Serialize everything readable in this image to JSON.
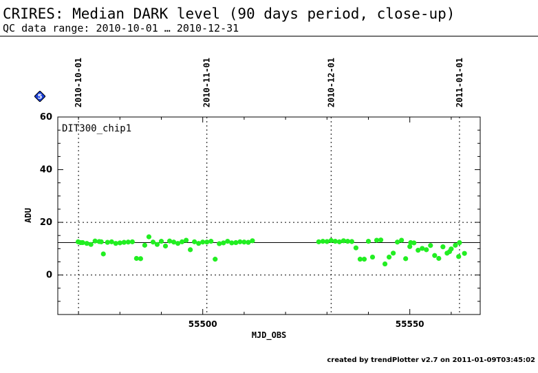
{
  "header": {
    "title": "CRIRES: Median DARK level (90 days period, close-up)",
    "subtitle": "QC data range: 2010-10-01 … 2010-12-31"
  },
  "badge": {
    "label": "5",
    "color": "#1a3fd6"
  },
  "footer": {
    "text": "created by trendPlotter v2.7 on 2011-01-09T03:45:02"
  },
  "chart_data": {
    "type": "scatter",
    "panel_label": "DIT300_chip1",
    "xlabel": "MJD_OBS",
    "ylabel": "ADU",
    "xlim": [
      55465,
      55567
    ],
    "ylim": [
      -15,
      60
    ],
    "yticks": [
      0,
      20,
      40,
      60
    ],
    "xticks": [
      55500,
      55550
    ],
    "reference_line": 12.3,
    "grid_y": [
      0,
      20
    ],
    "date_markers": [
      {
        "mjd": 55470,
        "label": "2010-10-01"
      },
      {
        "mjd": 55501,
        "label": "2010-11-01"
      },
      {
        "mjd": 55531,
        "label": "2010-12-01"
      },
      {
        "mjd": 55562,
        "label": "2011-01-01"
      }
    ],
    "marker_color": "#22ee22",
    "x": [
      55469.9,
      55471,
      55472,
      55473,
      55474,
      55475,
      55476,
      55477,
      55478,
      55479,
      55480,
      55481,
      55482,
      55483,
      55484,
      55485,
      55486,
      55487,
      55488,
      55489,
      55490,
      55491,
      55492,
      55493,
      55494,
      55495,
      55496,
      55497,
      55498,
      55499,
      55500,
      55501,
      55502,
      55503,
      55504,
      55505,
      55506,
      55507,
      55508,
      55509,
      55510,
      55511,
      55512,
      55528,
      55529,
      55530,
      55531,
      55532,
      55533,
      55534,
      55535,
      55536,
      55537,
      55538,
      55539,
      55540,
      55541,
      55542,
      55543,
      55544,
      55545,
      55546,
      55547,
      55548,
      55549,
      55550,
      55551,
      55552,
      55553,
      55554,
      55555,
      55556,
      55557,
      55558,
      55559,
      55560,
      55561,
      55562
    ],
    "y": [
      12.6,
      12.3,
      12,
      11.6,
      12.9,
      12.7,
      8,
      12.4,
      12.6,
      12,
      12.2,
      12.4,
      12.5,
      12.6,
      6.3,
      6.2,
      11.3,
      14.5,
      12.5,
      11.6,
      12.8,
      11,
      12.9,
      12.5,
      12,
      12.6,
      13.2,
      9.6,
      12.6,
      12,
      12.5,
      12.5,
      12.8,
      6,
      11.9,
      12.2,
      12.8,
      12.2,
      12.3,
      12.6,
      12.5,
      12.4,
      13,
      12.6,
      12.8,
      12.7,
      13.1,
      12.8,
      12.6,
      13,
      12.8,
      12.7,
      10.3,
      6,
      6,
      12.8,
      6.8,
      13.2,
      13.3,
      4.2,
      6.8,
      8.3,
      12.5,
      13.2,
      6.2,
      10.8,
      12.2,
      9.4,
      10.1,
      9.6,
      11.2,
      7.4,
      6.3,
      10.7,
      8.3,
      9.9,
      11.3,
      12.3
    ],
    "y_extra_points": [
      {
        "x": 55559.6,
        "y": 8.9
      },
      {
        "x": 55561.8,
        "y": 7
      },
      {
        "x": 55563.2,
        "y": 8.2
      },
      {
        "x": 55550.2,
        "y": 12.3
      },
      {
        "x": 55475.5,
        "y": 12.6
      },
      {
        "x": 55470.5,
        "y": 12.3
      }
    ]
  }
}
